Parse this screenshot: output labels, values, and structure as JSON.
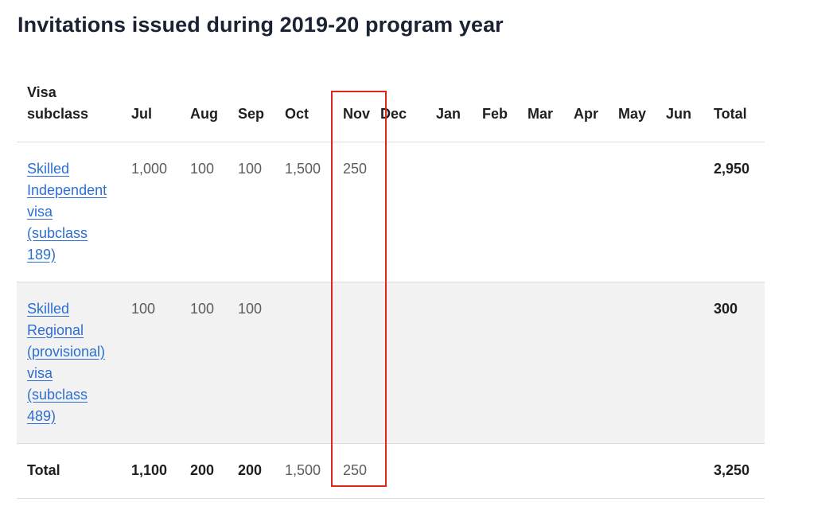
{
  "title": "Invitations issued during 2019-20 program year",
  "table": {
    "headers": {
      "visa_line1": "Visa",
      "visa_line2": "subclass",
      "months": [
        "Jul",
        "Aug",
        "Sep",
        "Oct",
        "Nov",
        "Dec",
        "Jan",
        "Feb",
        "Mar",
        "Apr",
        "May",
        "Jun"
      ],
      "total": "Total"
    },
    "rows": [
      {
        "visa": "Skilled Independent visa (subclass 189)",
        "values": [
          "1,000",
          "100",
          "100",
          "1,500",
          "250",
          "",
          "",
          "",
          "",
          "",
          "",
          ""
        ],
        "total": "2,950"
      },
      {
        "visa": "Skilled Regional (provisional) visa (subclass 489)",
        "values": [
          "100",
          "100",
          "100",
          "",
          "",
          "",
          "",
          "",
          "",
          "",
          "",
          ""
        ],
        "total": "300"
      }
    ],
    "footer": {
      "label": "Total",
      "values": [
        "1,100",
        "200",
        "200",
        "1,500",
        "250",
        "",
        "",
        "",
        "",
        "",
        "",
        ""
      ],
      "total": "3,250"
    }
  },
  "highlight": {
    "column": "Nov",
    "color": "#e0251b"
  },
  "colors": {
    "link": "#2d6fd1",
    "stripe": "#f2f2f2",
    "title": "#1a2233"
  }
}
